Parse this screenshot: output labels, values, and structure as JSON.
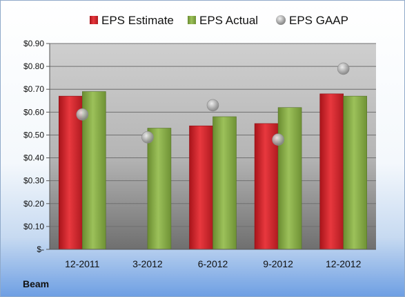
{
  "company": "Beam",
  "colors": {
    "estimate": "#d9262e",
    "actual": "#8db44a",
    "gaap": "#a8a8a8"
  },
  "chart_data": {
    "type": "bar",
    "categories": [
      "12-2011",
      "3-2012",
      "6-2012",
      "9-2012",
      "12-2012"
    ],
    "series": [
      {
        "name": "EPS Estimate",
        "kind": "bar",
        "values": [
          0.67,
          null,
          0.54,
          0.55,
          0.68
        ]
      },
      {
        "name": "EPS Actual",
        "kind": "bar",
        "values": [
          0.69,
          0.53,
          0.58,
          0.62,
          0.67
        ]
      },
      {
        "name": "EPS GAAP",
        "kind": "scatter",
        "values": [
          0.59,
          0.49,
          0.63,
          0.48,
          0.79
        ]
      }
    ],
    "ylim": [
      0,
      0.9
    ],
    "yticks": [
      0,
      0.1,
      0.2,
      0.3,
      0.4,
      0.5,
      0.6,
      0.7,
      0.8,
      0.9
    ],
    "ytick_labels": [
      "$-",
      "$0.10",
      "$0.20",
      "$0.30",
      "$0.40",
      "$0.50",
      "$0.60",
      "$0.70",
      "$0.80",
      "$0.90"
    ],
    "grid": true,
    "legend": "top"
  }
}
